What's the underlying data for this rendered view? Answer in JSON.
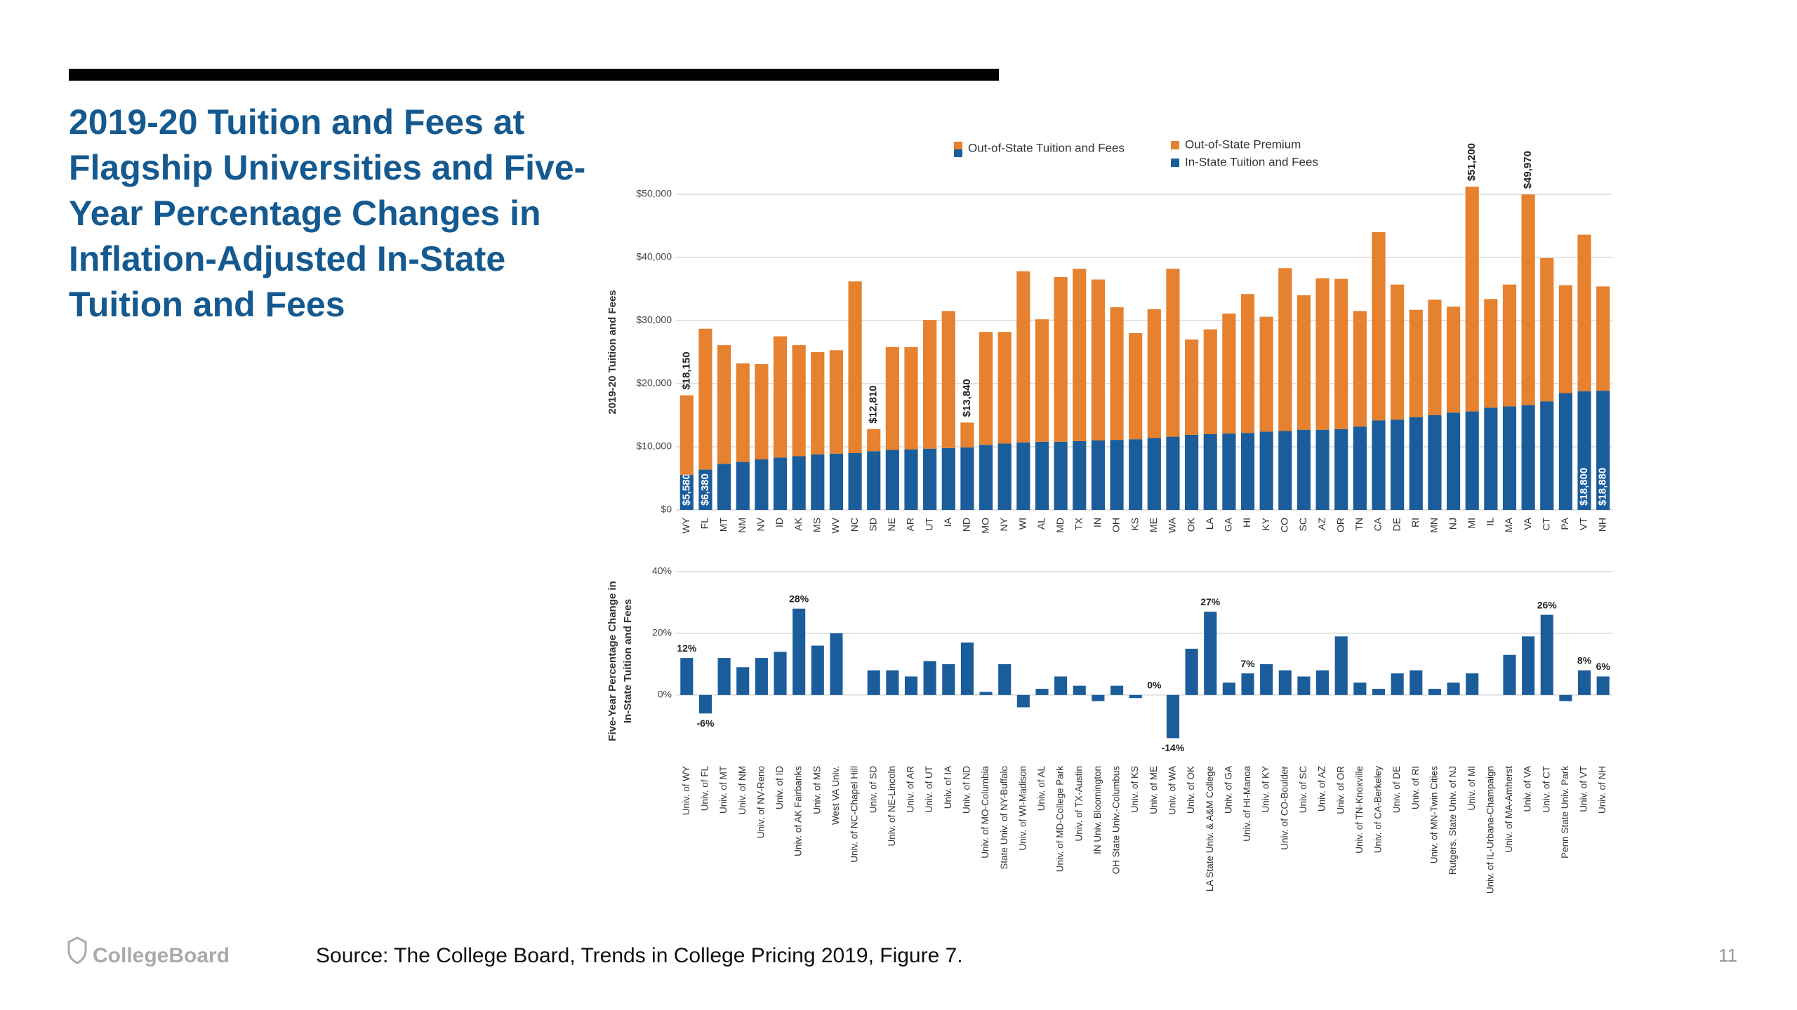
{
  "title": "2019-20 Tuition and Fees at Flagship Universities and Five-Year Percentage Changes in Inflation-Adjusted In-State Tuition and Fees",
  "source": "Source: The College Board, Trends in College Pricing 2019, Figure 7.",
  "logo": "CollegeBoard",
  "page_number": "11",
  "chart_data": [
    {
      "type": "stacked_bar",
      "y_label": "2019-20 Tuition and Fees",
      "total_name": "Out-of-State Tuition and Fees",
      "categories": [
        "WY",
        "FL",
        "MT",
        "NM",
        "NV",
        "ID",
        "AK",
        "MS",
        "WV",
        "NC",
        "SD",
        "NE",
        "AR",
        "UT",
        "IA",
        "ND",
        "MO",
        "NY",
        "WI",
        "AL",
        "MD",
        "TX",
        "IN",
        "OH",
        "KS",
        "ME",
        "WA",
        "OK",
        "LA",
        "GA",
        "HI",
        "KY",
        "CO",
        "SC",
        "AZ",
        "OR",
        "TN",
        "CA",
        "DE",
        "RI",
        "MN",
        "NJ",
        "MI",
        "IL",
        "MA",
        "VA",
        "CT",
        "PA",
        "VT",
        "NH"
      ],
      "series": [
        {
          "name": "In-State Tuition and Fees",
          "color": "#1b5d9b",
          "values": [
            5580,
            6380,
            7300,
            7600,
            8000,
            8300,
            8500,
            8800,
            8900,
            9000,
            9300,
            9500,
            9600,
            9700,
            9800,
            9900,
            10300,
            10500,
            10700,
            10800,
            10800,
            10900,
            11000,
            11100,
            11200,
            11400,
            11600,
            11900,
            12000,
            12100,
            12200,
            12400,
            12500,
            12700,
            12700,
            12800,
            13200,
            14200,
            14300,
            14700,
            15000,
            15400,
            15600,
            16200,
            16400,
            16600,
            17200,
            18500,
            18800,
            18880
          ],
          "value_labels": [
            "$5,580",
            "$6,380",
            null,
            null,
            null,
            null,
            null,
            null,
            null,
            null,
            null,
            null,
            null,
            null,
            null,
            null,
            null,
            null,
            null,
            null,
            null,
            null,
            null,
            null,
            null,
            null,
            null,
            null,
            null,
            null,
            null,
            null,
            null,
            null,
            null,
            null,
            null,
            null,
            null,
            null,
            null,
            null,
            null,
            null,
            null,
            null,
            null,
            null,
            "$18,800",
            "$18,880"
          ]
        },
        {
          "name": "Out-of-State Premium",
          "color": "#e5812f",
          "values": [
            12570,
            22320,
            18800,
            15600,
            15100,
            19200,
            17600,
            16200,
            16400,
            27200,
            3510,
            16300,
            16200,
            20400,
            21700,
            3940,
            17900,
            17700,
            27100,
            19400,
            26100,
            27300,
            25500,
            21000,
            16800,
            20400,
            26600,
            15100,
            16600,
            19000,
            22000,
            18200,
            25800,
            21300,
            24000,
            23800,
            18300,
            29800,
            21400,
            17000,
            18300,
            16800,
            35600,
            17200,
            19300,
            33370,
            22700,
            17100,
            24800,
            16520
          ]
        }
      ],
      "annotations": [
        {
          "x": "WY",
          "value": 18150,
          "label": "$18,150"
        },
        {
          "x": "SD",
          "value": 12810,
          "label": "$12,810"
        },
        {
          "x": "ND",
          "value": 13840,
          "label": "$13,840"
        },
        {
          "x": "MI",
          "value": 51200,
          "label": "$51,200"
        },
        {
          "x": "VA",
          "value": 49970,
          "label": "$49,970"
        }
      ],
      "ylim": [
        0,
        50000
      ],
      "yticks": [
        {
          "value": 0,
          "label": "$0"
        },
        {
          "value": 10000,
          "label": "$10,000"
        },
        {
          "value": 20000,
          "label": "$20,000"
        },
        {
          "value": 30000,
          "label": "$30,000"
        },
        {
          "value": 40000,
          "label": "$40,000"
        },
        {
          "value": 50000,
          "label": "$50,000"
        }
      ],
      "grid": true
    },
    {
      "type": "bar",
      "y_label": [
        "Five-Year Percentage Change in",
        "In-State Tuition and Fees"
      ],
      "categories": [
        "Univ. of WY",
        "Univ. of FL",
        "Univ. of MT",
        "Univ. of NM",
        "Univ. of NV-Reno",
        "Univ. of ID",
        "Univ. of AK Fairbanks",
        "Univ. of MS",
        "West VA Univ.",
        "Univ. of NC-Chapel Hill",
        "Univ. of SD",
        "Univ. of NE-Lincoln",
        "Univ. of AR",
        "Univ. of UT",
        "Univ. of IA",
        "Univ. of ND",
        "Univ. of MO-Columbia",
        "State Univ. of NY-Buffalo",
        "Univ. of WI-Madison",
        "Univ. of AL",
        "Univ. of MD-College Park",
        "Univ. of TX-Austin",
        "IN Univ. Bloomington",
        "OH State Univ.-Columbus",
        "Univ. of KS",
        "Univ. of ME",
        "Univ. of WA",
        "Univ. of OK",
        "LA State Univ. & A&M College",
        "Univ. of GA",
        "Univ. of HI-Manoa",
        "Univ. of KY",
        "Univ. of CO-Boulder",
        "Univ. of SC",
        "Univ. of AZ",
        "Univ. of OR",
        "Univ. of TN-Knoxville",
        "Univ. of CA-Berkeley",
        "Univ. of DE",
        "Univ. of RI",
        "Univ. of MN-Twin Cities",
        "Rutgers, State Univ. of NJ",
        "Univ. of MI",
        "Univ. of IL-Urbana-Champaign",
        "Univ. of MA-Amherst",
        "Univ. of VA",
        "Univ. of CT",
        "Penn State Univ. Park",
        "Univ. of VT",
        "Univ. of NH"
      ],
      "values": [
        12,
        -6,
        12,
        9,
        12,
        14,
        28,
        16,
        20,
        null,
        8,
        8,
        6,
        11,
        10,
        17,
        1,
        10,
        -4,
        2,
        6,
        3,
        -2,
        3,
        -1,
        0,
        -14,
        15,
        27,
        4,
        7,
        10,
        8,
        6,
        8,
        19,
        4,
        2,
        7,
        8,
        2,
        4,
        7,
        null,
        13,
        19,
        26,
        -2,
        8,
        6
      ],
      "value_labels": [
        "12%",
        "-6%",
        null,
        null,
        null,
        null,
        "28%",
        null,
        null,
        null,
        null,
        null,
        null,
        null,
        null,
        null,
        null,
        null,
        null,
        null,
        null,
        null,
        null,
        null,
        null,
        "0%",
        "-14%",
        null,
        "27%",
        null,
        "7%",
        null,
        null,
        null,
        null,
        null,
        null,
        null,
        null,
        null,
        null,
        null,
        null,
        null,
        null,
        null,
        "26%",
        null,
        "8%",
        "6%"
      ],
      "color": "#1b5d9b",
      "ylim": [
        -18,
        40
      ],
      "yticks": [
        {
          "value": 0,
          "label": "0%"
        },
        {
          "value": 20,
          "label": "20%"
        },
        {
          "value": 40,
          "label": "40%"
        }
      ],
      "grid": true
    }
  ]
}
